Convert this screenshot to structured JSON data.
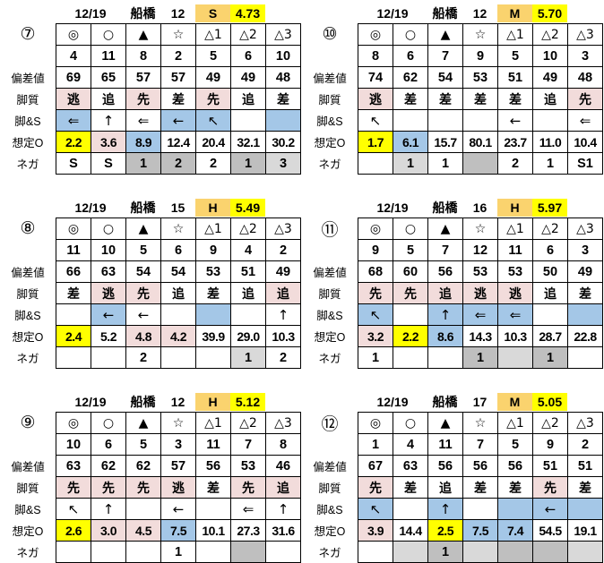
{
  "colors": {
    "yellow": "#FFFF00",
    "orange": "#FAD36E",
    "pink": "#F2DCDB",
    "blue": "#A4C7E7",
    "gray_light": "#D9D9D9",
    "gray_dark": "#BFBFBF"
  },
  "row_labels": {
    "dev": "偏差値",
    "style": "脚質",
    "legs": "脚&S",
    "odds": "想定O",
    "nega": "ネガ"
  },
  "symbols": [
    "◎",
    "○",
    "▲",
    "☆",
    "△1",
    "△2",
    "△3"
  ],
  "tables": [
    {
      "badge": "⑦",
      "header": {
        "date": "12/19",
        "track": "船橋",
        "race": "12",
        "cls": "S",
        "value": "4.73"
      },
      "rows": {
        "horses": [
          "4",
          "11",
          "8",
          "2",
          "5",
          "6",
          "10"
        ],
        "dev": [
          "69",
          "65",
          "57",
          "57",
          "49",
          "49",
          "48"
        ],
        "style": [
          {
            "t": "逃",
            "c": "p"
          },
          {
            "t": "追",
            "c": ""
          },
          {
            "t": "先",
            "c": "p"
          },
          {
            "t": "差",
            "c": ""
          },
          {
            "t": "先",
            "c": "p"
          },
          {
            "t": "追",
            "c": ""
          },
          {
            "t": "差",
            "c": ""
          }
        ],
        "legs": [
          {
            "t": "⇐",
            "c": "b"
          },
          {
            "t": "↑",
            "c": ""
          },
          {
            "t": "⇐",
            "c": ""
          },
          {
            "t": "←",
            "c": "b"
          },
          {
            "t": "↖",
            "c": "b"
          },
          {
            "t": "",
            "c": ""
          },
          {
            "t": "",
            "c": "b"
          }
        ],
        "odds": [
          {
            "t": "2.2",
            "c": "y"
          },
          {
            "t": "3.6",
            "c": "p"
          },
          {
            "t": "8.9",
            "c": "b"
          },
          {
            "t": "12.4",
            "c": ""
          },
          {
            "t": "20.4",
            "c": ""
          },
          {
            "t": "32.1",
            "c": ""
          },
          {
            "t": "30.2",
            "c": ""
          }
        ],
        "nega": [
          {
            "t": "S",
            "c": ""
          },
          {
            "t": "S",
            "c": ""
          },
          {
            "t": "1",
            "c": "g2"
          },
          {
            "t": "2",
            "c": "g2"
          },
          {
            "t": "2",
            "c": ""
          },
          {
            "t": "1",
            "c": "g2"
          },
          {
            "t": "3",
            "c": "g1"
          }
        ]
      }
    },
    {
      "badge": "⑩",
      "header": {
        "date": "12/19",
        "track": "船橋",
        "race": "12",
        "cls": "M",
        "value": "5.70"
      },
      "rows": {
        "horses": [
          "8",
          "6",
          "7",
          "9",
          "5",
          "10",
          "3"
        ],
        "dev": [
          "74",
          "62",
          "54",
          "53",
          "51",
          "49",
          "48"
        ],
        "style": [
          {
            "t": "逃",
            "c": "p"
          },
          {
            "t": "差",
            "c": ""
          },
          {
            "t": "差",
            "c": ""
          },
          {
            "t": "差",
            "c": ""
          },
          {
            "t": "差",
            "c": ""
          },
          {
            "t": "追",
            "c": ""
          },
          {
            "t": "先",
            "c": "p"
          }
        ],
        "legs": [
          {
            "t": "↖",
            "c": ""
          },
          {
            "t": "",
            "c": ""
          },
          {
            "t": "",
            "c": ""
          },
          {
            "t": "",
            "c": ""
          },
          {
            "t": "←",
            "c": ""
          },
          {
            "t": "",
            "c": ""
          },
          {
            "t": "⇐",
            "c": ""
          }
        ],
        "odds": [
          {
            "t": "1.7",
            "c": "y"
          },
          {
            "t": "6.1",
            "c": "b"
          },
          {
            "t": "15.7",
            "c": ""
          },
          {
            "t": "80.1",
            "c": ""
          },
          {
            "t": "23.7",
            "c": ""
          },
          {
            "t": "11.0",
            "c": ""
          },
          {
            "t": "10.4",
            "c": ""
          }
        ],
        "nega": [
          {
            "t": "",
            "c": ""
          },
          {
            "t": "1",
            "c": "g1"
          },
          {
            "t": "1",
            "c": ""
          },
          {
            "t": "",
            "c": "g2"
          },
          {
            "t": "2",
            "c": ""
          },
          {
            "t": "1",
            "c": ""
          },
          {
            "t": "S1",
            "c": ""
          }
        ]
      }
    },
    {
      "badge": "⑧",
      "header": {
        "date": "12/19",
        "track": "船橋",
        "race": "15",
        "cls": "H",
        "value": "5.49"
      },
      "rows": {
        "horses": [
          "11",
          "10",
          "5",
          "6",
          "9",
          "4",
          "2"
        ],
        "dev": [
          "66",
          "63",
          "54",
          "54",
          "53",
          "51",
          "49"
        ],
        "style": [
          {
            "t": "差",
            "c": ""
          },
          {
            "t": "逃",
            "c": "p"
          },
          {
            "t": "先",
            "c": "p"
          },
          {
            "t": "追",
            "c": ""
          },
          {
            "t": "差",
            "c": ""
          },
          {
            "t": "追",
            "c": ""
          },
          {
            "t": "追",
            "c": "p"
          }
        ],
        "legs": [
          {
            "t": "",
            "c": ""
          },
          {
            "t": "←",
            "c": "b"
          },
          {
            "t": "←",
            "c": ""
          },
          {
            "t": "",
            "c": ""
          },
          {
            "t": "",
            "c": "b"
          },
          {
            "t": "",
            "c": ""
          },
          {
            "t": "↑",
            "c": ""
          }
        ],
        "odds": [
          {
            "t": "2.4",
            "c": "y"
          },
          {
            "t": "5.2",
            "c": ""
          },
          {
            "t": "4.8",
            "c": "p"
          },
          {
            "t": "4.2",
            "c": "p"
          },
          {
            "t": "39.9",
            "c": ""
          },
          {
            "t": "29.0",
            "c": ""
          },
          {
            "t": "10.3",
            "c": ""
          }
        ],
        "nega": [
          {
            "t": "",
            "c": ""
          },
          {
            "t": "",
            "c": ""
          },
          {
            "t": "2",
            "c": ""
          },
          {
            "t": "",
            "c": ""
          },
          {
            "t": "",
            "c": ""
          },
          {
            "t": "1",
            "c": "g1"
          },
          {
            "t": "2",
            "c": ""
          }
        ]
      }
    },
    {
      "badge": "⑪",
      "header": {
        "date": "12/19",
        "track": "船橋",
        "race": "16",
        "cls": "H",
        "value": "5.97"
      },
      "rows": {
        "horses": [
          "9",
          "5",
          "7",
          "12",
          "11",
          "6",
          "3"
        ],
        "dev": [
          "68",
          "60",
          "56",
          "53",
          "53",
          "50",
          "49"
        ],
        "style": [
          {
            "t": "先",
            "c": "p"
          },
          {
            "t": "先",
            "c": "p"
          },
          {
            "t": "追",
            "c": "p"
          },
          {
            "t": "逃",
            "c": "p"
          },
          {
            "t": "逃",
            "c": "p"
          },
          {
            "t": "追",
            "c": ""
          },
          {
            "t": "差",
            "c": ""
          }
        ],
        "legs": [
          {
            "t": "↖",
            "c": "b"
          },
          {
            "t": "",
            "c": ""
          },
          {
            "t": "↑",
            "c": "b"
          },
          {
            "t": "⇐",
            "c": "b"
          },
          {
            "t": "⇐",
            "c": "b"
          },
          {
            "t": "",
            "c": ""
          },
          {
            "t": "",
            "c": "b"
          }
        ],
        "odds": [
          {
            "t": "3.2",
            "c": "p"
          },
          {
            "t": "2.2",
            "c": "y"
          },
          {
            "t": "8.6",
            "c": "b"
          },
          {
            "t": "14.3",
            "c": ""
          },
          {
            "t": "10.3",
            "c": ""
          },
          {
            "t": "28.7",
            "c": ""
          },
          {
            "t": "22.8",
            "c": ""
          }
        ],
        "nega": [
          {
            "t": "1",
            "c": ""
          },
          {
            "t": "",
            "c": ""
          },
          {
            "t": "",
            "c": ""
          },
          {
            "t": "1",
            "c": "g2"
          },
          {
            "t": "",
            "c": "g1"
          },
          {
            "t": "1",
            "c": "g2"
          },
          {
            "t": "",
            "c": ""
          }
        ]
      }
    },
    {
      "badge": "⑨",
      "header": {
        "date": "12/19",
        "track": "船橋",
        "race": "12",
        "cls": "H",
        "value": "5.12"
      },
      "rows": {
        "horses": [
          "10",
          "6",
          "5",
          "3",
          "11",
          "7",
          "8"
        ],
        "dev": [
          "63",
          "62",
          "62",
          "57",
          "56",
          "53",
          "46"
        ],
        "style": [
          {
            "t": "先",
            "c": "p"
          },
          {
            "t": "先",
            "c": "p"
          },
          {
            "t": "先",
            "c": "p"
          },
          {
            "t": "逃",
            "c": "p"
          },
          {
            "t": "差",
            "c": ""
          },
          {
            "t": "先",
            "c": "p"
          },
          {
            "t": "追",
            "c": "p"
          }
        ],
        "legs": [
          {
            "t": "↖",
            "c": ""
          },
          {
            "t": "↑",
            "c": ""
          },
          {
            "t": "",
            "c": ""
          },
          {
            "t": "←",
            "c": ""
          },
          {
            "t": "",
            "c": ""
          },
          {
            "t": "⇐",
            "c": ""
          },
          {
            "t": "↑",
            "c": ""
          }
        ],
        "odds": [
          {
            "t": "2.6",
            "c": "y"
          },
          {
            "t": "3.0",
            "c": "p"
          },
          {
            "t": "4.5",
            "c": "p"
          },
          {
            "t": "7.5",
            "c": "b"
          },
          {
            "t": "10.1",
            "c": ""
          },
          {
            "t": "27.3",
            "c": ""
          },
          {
            "t": "31.6",
            "c": ""
          }
        ],
        "nega": [
          {
            "t": "",
            "c": ""
          },
          {
            "t": "",
            "c": ""
          },
          {
            "t": "",
            "c": ""
          },
          {
            "t": "1",
            "c": ""
          },
          {
            "t": "",
            "c": ""
          },
          {
            "t": "",
            "c": "g2"
          },
          {
            "t": "",
            "c": ""
          }
        ]
      }
    },
    {
      "badge": "⑫",
      "header": {
        "date": "12/19",
        "track": "船橋",
        "race": "17",
        "cls": "M",
        "value": "5.05"
      },
      "rows": {
        "horses": [
          "1",
          "4",
          "11",
          "7",
          "5",
          "9",
          "2"
        ],
        "dev": [
          "67",
          "63",
          "56",
          "56",
          "56",
          "51",
          "51"
        ],
        "style": [
          {
            "t": "先",
            "c": "p"
          },
          {
            "t": "差",
            "c": ""
          },
          {
            "t": "追",
            "c": ""
          },
          {
            "t": "差",
            "c": ""
          },
          {
            "t": "差",
            "c": ""
          },
          {
            "t": "先",
            "c": "p"
          },
          {
            "t": "差",
            "c": ""
          }
        ],
        "legs": [
          {
            "t": "↖",
            "c": "b"
          },
          {
            "t": "",
            "c": ""
          },
          {
            "t": "↑",
            "c": "b"
          },
          {
            "t": "",
            "c": ""
          },
          {
            "t": "",
            "c": "b"
          },
          {
            "t": "←",
            "c": "b"
          },
          {
            "t": "",
            "c": "b"
          }
        ],
        "odds": [
          {
            "t": "3.9",
            "c": "p"
          },
          {
            "t": "14.4",
            "c": ""
          },
          {
            "t": "2.5",
            "c": "y"
          },
          {
            "t": "7.5",
            "c": "b"
          },
          {
            "t": "7.4",
            "c": "b"
          },
          {
            "t": "54.5",
            "c": ""
          },
          {
            "t": "19.1",
            "c": ""
          }
        ],
        "nega": [
          {
            "t": "",
            "c": ""
          },
          {
            "t": "",
            "c": "g1"
          },
          {
            "t": "1",
            "c": "g2"
          },
          {
            "t": "",
            "c": "g1"
          },
          {
            "t": "",
            "c": "g2"
          },
          {
            "t": "",
            "c": "g2"
          },
          {
            "t": "",
            "c": "g1"
          }
        ]
      }
    }
  ]
}
